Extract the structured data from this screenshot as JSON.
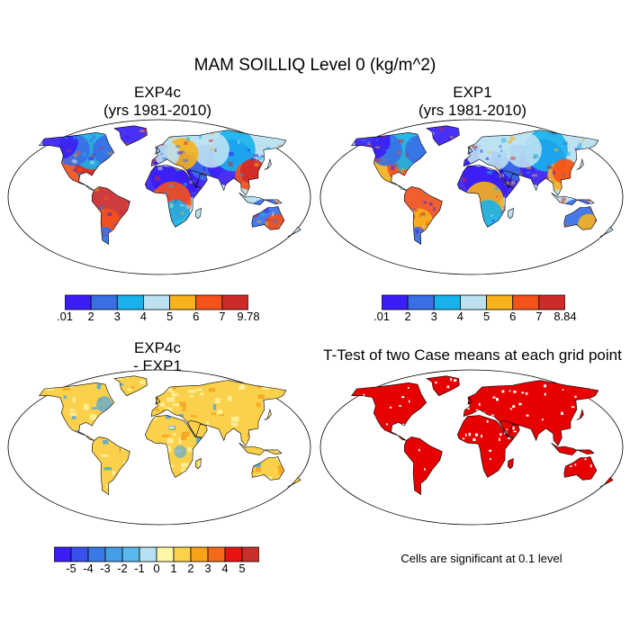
{
  "title": "MAM SOILLIQ Level 0 (kg/m^2)",
  "panels": [
    {
      "title_line1": "EXP4c",
      "title_line2": "(yrs 1981-2010)"
    },
    {
      "title_line1": "EXP1",
      "title_line2": "(yrs 1981-2010)"
    },
    {
      "title_line1": "EXP4c",
      "title_line2": "- EXP1"
    },
    {
      "title_line1": "T-Test of two Case means at each grid point",
      "title_line2": ""
    }
  ],
  "colorbars": [
    {
      "labels": [
        ".01",
        "2",
        "3",
        "4",
        "5",
        "6",
        "7",
        "9.78"
      ],
      "colors": [
        "#3b1ef5",
        "#3a6ee6",
        "#17b2ec",
        "#bce2f2",
        "#f7b21c",
        "#f5511a",
        "#cf2a2a"
      ]
    },
    {
      "labels": [
        ".01",
        "2",
        "3",
        "4",
        "5",
        "6",
        "7",
        "8.84"
      ],
      "colors": [
        "#3b1ef5",
        "#3a6ee6",
        "#17b2ec",
        "#bce2f2",
        "#f7b21c",
        "#f5511a",
        "#cf2a2a"
      ]
    },
    {
      "labels": [
        "-5",
        "-4",
        "-3",
        "-2",
        "-1",
        "0",
        "1",
        "2",
        "3",
        "4",
        "5"
      ],
      "colors": [
        "#3b1ef5",
        "#3850ec",
        "#3a7ae6",
        "#449fe6",
        "#5ab9ec",
        "#b5e1f2",
        "#fff7a8",
        "#fcd24b",
        "#f8a21a",
        "#f46a18",
        "#e81414",
        "#c8302c"
      ]
    }
  ],
  "note": "Cells are significant at 0.1 level",
  "colors": {
    "land_significant": "#e60000",
    "diff_base": "#fbd04a",
    "diff_light": "#fff2a0",
    "diff_blue": "#4aa6e8",
    "diff_orange": "#f5a31f"
  }
}
